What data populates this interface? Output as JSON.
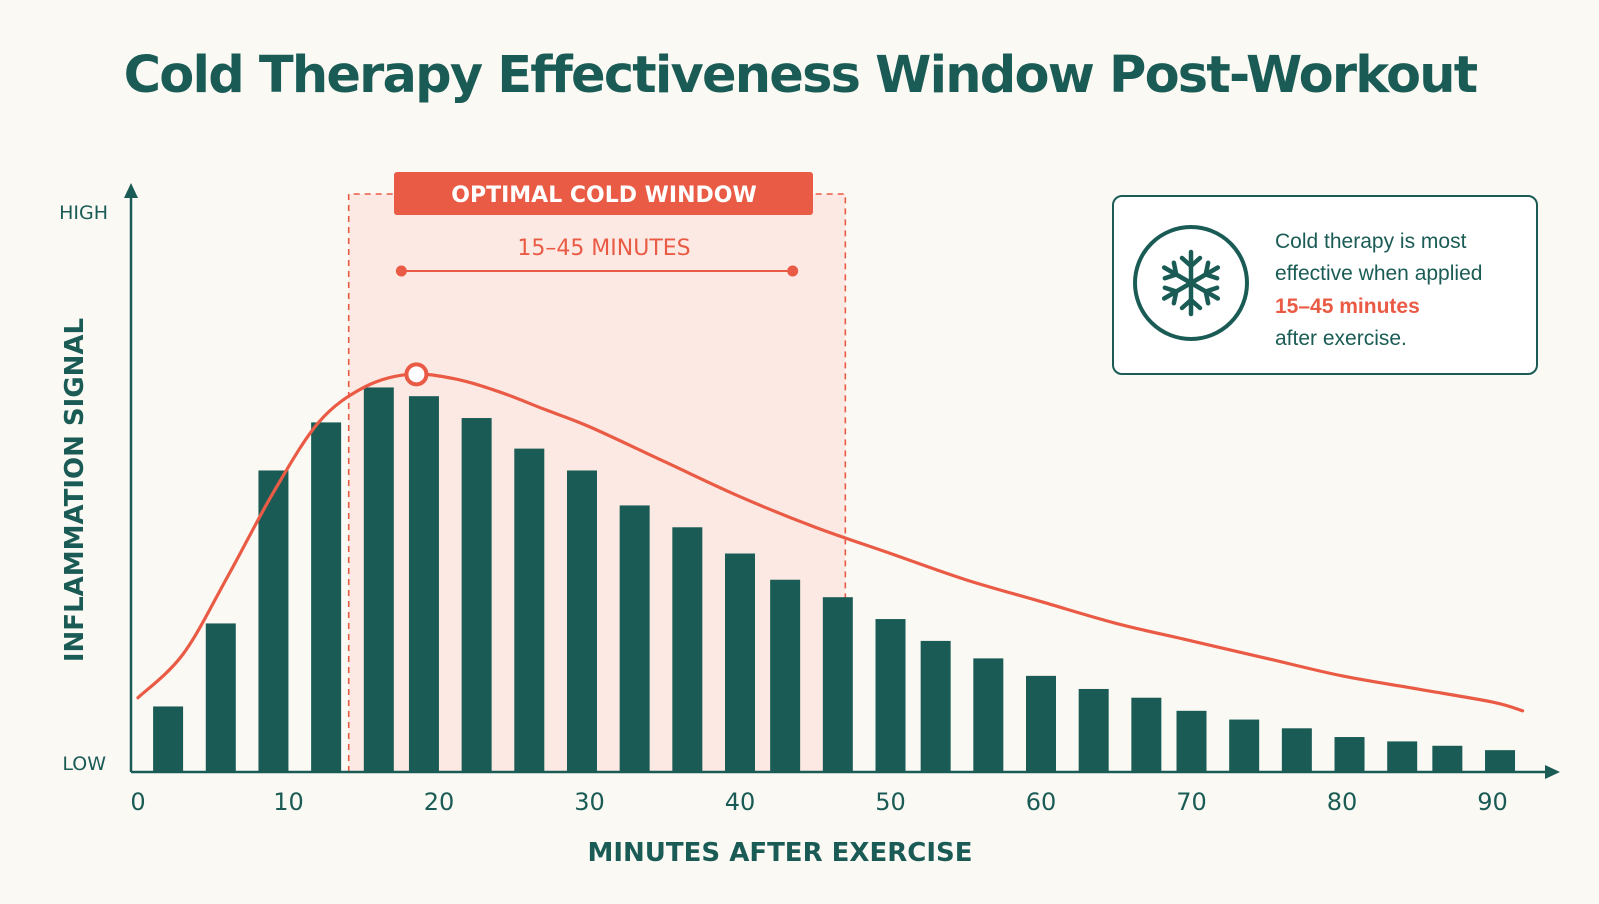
{
  "colors": {
    "teal": "#1a5c55",
    "coral": "#ea5b45",
    "band_fill": "#fde6df",
    "background": "#fbf9f4"
  },
  "icon": "snowflake-icon",
  "chart_data": {
    "type": "bar",
    "title": "Cold Therapy Effectiveness Window Post-Workout",
    "xlabel": "MINUTES AFTER EXERCISE",
    "ylabel": "INFLAMMATION SIGNAL",
    "y_high_label": "HIGH",
    "y_low_label": "LOW",
    "x_ticks": [
      0,
      10,
      20,
      30,
      40,
      50,
      60,
      70,
      80,
      90
    ],
    "xlim": [
      0,
      92
    ],
    "ylim": [
      0,
      100
    ],
    "grid": false,
    "bars": {
      "x": [
        2,
        5.5,
        9,
        12.5,
        16,
        19,
        22.5,
        26,
        29.5,
        33,
        36.5,
        40,
        43,
        46.5,
        50,
        53,
        56.5,
        60,
        63.5,
        67,
        70,
        73.5,
        77,
        80.5,
        84,
        87,
        90.5
      ],
      "values": [
        15,
        34,
        69,
        80,
        88,
        86,
        81,
        74,
        69,
        61,
        56,
        50,
        44,
        40,
        35,
        30,
        26,
        22,
        19,
        17,
        14,
        12,
        10,
        8,
        7,
        6,
        5
      ]
    },
    "curve": {
      "x": [
        0,
        3,
        6,
        9,
        12,
        15,
        18,
        21,
        24,
        27,
        30,
        35,
        40,
        45,
        50,
        55,
        60,
        65,
        70,
        75,
        80,
        85,
        90,
        92
      ],
      "values": [
        17,
        27,
        45,
        64,
        80,
        88,
        91,
        90,
        87,
        83,
        79,
        71,
        63,
        56,
        50,
        44,
        39,
        34,
        30,
        26,
        22,
        19,
        16,
        14
      ],
      "peak": {
        "x": 18.5,
        "value": 91
      }
    },
    "optimal_window": {
      "label": "OPTIMAL COLD WINDOW",
      "range_label": "15–45 MINUTES",
      "start": 14,
      "end": 47,
      "arrow_start": 17.5,
      "arrow_end": 43.5
    },
    "info_box": {
      "line1": "Cold therapy is most",
      "line2": "effective when applied",
      "highlight": "15–45 minutes",
      "line4": "after exercise."
    }
  }
}
